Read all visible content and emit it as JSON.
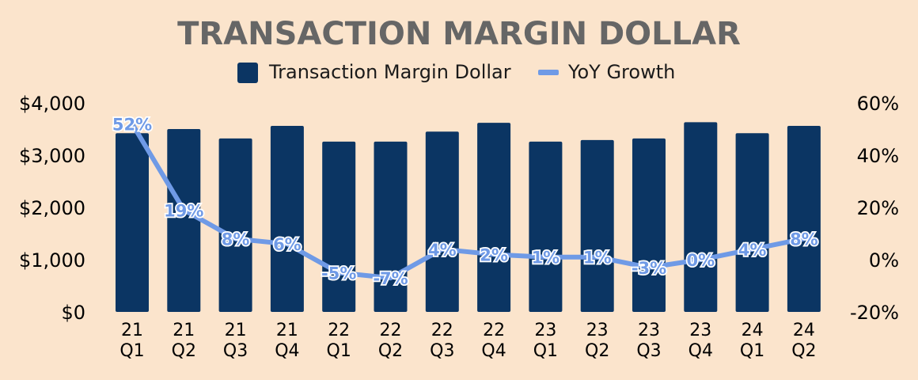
{
  "chart_data": {
    "type": "bar+line",
    "title": "TRANSACTION MARGIN DOLLAR",
    "legend": [
      {
        "name": "Transaction Margin Dollar",
        "kind": "bar",
        "color": "#0b3563"
      },
      {
        "name": "YoY Growth",
        "kind": "line",
        "color": "#6f9ae6"
      }
    ],
    "legend_position": "top-center",
    "categories": [
      [
        "21",
        "Q1"
      ],
      [
        "21",
        "Q2"
      ],
      [
        "21",
        "Q3"
      ],
      [
        "21",
        "Q4"
      ],
      [
        "22",
        "Q1"
      ],
      [
        "22",
        "Q2"
      ],
      [
        "22",
        "Q3"
      ],
      [
        "22",
        "Q4"
      ],
      [
        "23",
        "Q1"
      ],
      [
        "23",
        "Q2"
      ],
      [
        "23",
        "Q3"
      ],
      [
        "23",
        "Q4"
      ],
      [
        "24",
        "Q1"
      ],
      [
        "24",
        "Q2"
      ]
    ],
    "series": [
      {
        "name": "Transaction Margin Dollar",
        "axis": "left",
        "values": [
          3420,
          3500,
          3320,
          3560,
          3260,
          3260,
          3450,
          3620,
          3260,
          3290,
          3320,
          3630,
          3420,
          3560
        ]
      },
      {
        "name": "YoY Growth",
        "axis": "right",
        "values": [
          52,
          19,
          8,
          6,
          -5,
          -7,
          4,
          2,
          1,
          1,
          -3,
          0,
          4,
          8
        ],
        "labels": [
          "52%",
          "19%",
          "8%",
          "6%",
          "-5%",
          "-7%",
          "4%",
          "2%",
          "1%",
          "1%",
          "-3%",
          "0%",
          "4%",
          "8%"
        ]
      }
    ],
    "y_left": {
      "min": 0,
      "max": 4000,
      "ticks": [
        0,
        1000,
        2000,
        3000,
        4000
      ],
      "tick_labels": [
        "$0",
        "$1,000",
        "$2,000",
        "$3,000",
        "$4,000"
      ]
    },
    "y_right": {
      "min": -20,
      "max": 60,
      "ticks": [
        -20,
        0,
        20,
        40,
        60
      ],
      "tick_labels": [
        "-20%",
        "0%",
        "20%",
        "40%",
        "60%"
      ]
    },
    "grid": false
  }
}
